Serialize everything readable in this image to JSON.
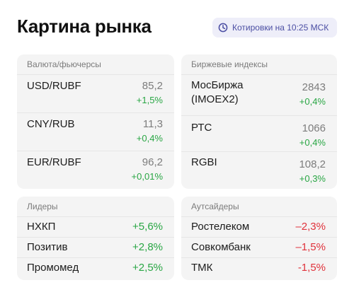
{
  "header": {
    "title": "Картина рынка",
    "badge": {
      "icon": "clock-icon",
      "text": "Котировки на 10:25 МСК"
    }
  },
  "colors": {
    "positive": "#29a644",
    "negative": "#e0323b",
    "badge_bg": "#eeeef9",
    "badge_fg": "#4b4ea3"
  },
  "currency": {
    "title": "Валюта/фьючерсы",
    "rows": [
      {
        "name": "USD/RUBF",
        "value": "85,2",
        "change": "+1,5%"
      },
      {
        "name": "CNY/RUB",
        "value": "11,3",
        "change": "+0,4%"
      },
      {
        "name": "EUR/RUBF",
        "value": "96,2",
        "change": "+0,01%"
      }
    ]
  },
  "indices": {
    "title": "Биржевые индексы",
    "rows": [
      {
        "name": "МосБиржа\n(IMOEX2)",
        "value": "2843",
        "change": "+0,4%"
      },
      {
        "name": "РТС",
        "value": "1066",
        "change": "+0,4%"
      },
      {
        "name": "RGBI",
        "value": "108,2",
        "change": "+0,3%"
      }
    ]
  },
  "leaders": {
    "title": "Лидеры",
    "rows": [
      {
        "name": "НХКП",
        "change": "+5,6%"
      },
      {
        "name": "Позитив",
        "change": "+2,8%"
      },
      {
        "name": "Промомед",
        "change": "+2,5%"
      }
    ]
  },
  "outsiders": {
    "title": "Аутсайдеры",
    "rows": [
      {
        "name": "Ростелеком",
        "change": "–2,3%"
      },
      {
        "name": "Совкомбанк",
        "change": "–1,5%"
      },
      {
        "name": "ТМК",
        "change": "-1,5%"
      }
    ]
  }
}
